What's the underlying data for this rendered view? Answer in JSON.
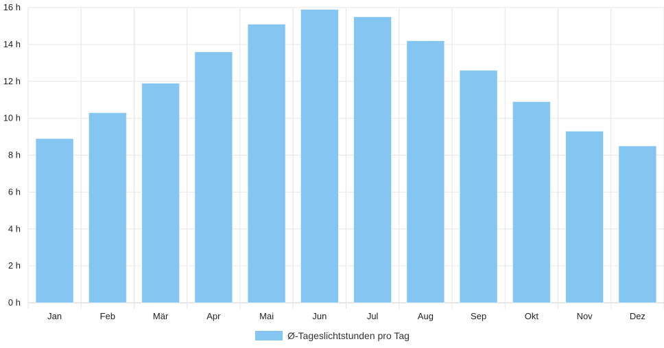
{
  "chart_data": {
    "type": "bar",
    "categories": [
      "Jan",
      "Feb",
      "Mär",
      "Apr",
      "Mai",
      "Jun",
      "Jul",
      "Aug",
      "Sep",
      "Okt",
      "Nov",
      "Dez"
    ],
    "series": [
      {
        "name": "Ø-Tageslichtstunden pro Tag",
        "values": [
          8.9,
          10.3,
          11.9,
          13.6,
          15.1,
          15.9,
          15.5,
          14.2,
          12.6,
          10.9,
          9.3,
          8.5
        ],
        "color": "#85c5f2"
      }
    ],
    "y_ticks": [
      "0 h",
      "2 h",
      "4 h",
      "6 h",
      "8 h",
      "10 h",
      "12 h",
      "14 h",
      "16 h"
    ],
    "ylim": [
      0,
      16
    ],
    "grid": true,
    "legend_position": "bottom"
  }
}
